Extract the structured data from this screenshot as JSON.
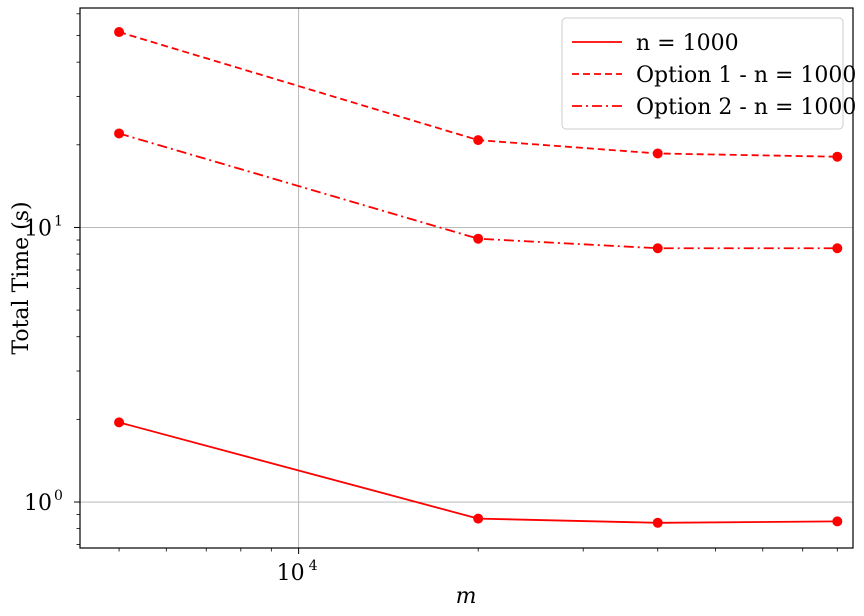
{
  "chart_data": {
    "type": "line",
    "xlabel": "m",
    "ylabel": "Total Time (s)",
    "xscale": "log",
    "yscale": "log",
    "xlim": [
      4300,
      85000
    ],
    "ylim": [
      0.68,
      63
    ],
    "grid": true,
    "legend_position": "top-right",
    "x": [
      5000,
      20000,
      40000,
      80000
    ],
    "x_ticks": [
      {
        "base": "10",
        "exp": "4",
        "value": 10000
      }
    ],
    "y_ticks": [
      {
        "base": "10",
        "exp": "0",
        "value": 1
      },
      {
        "base": "10",
        "exp": "1",
        "value": 10
      }
    ],
    "series": [
      {
        "name": "n = 1000",
        "linestyle": "solid",
        "color": "#ff0000",
        "values": [
          1.95,
          0.87,
          0.84,
          0.85
        ]
      },
      {
        "name": "Option 1 - n = 1000",
        "linestyle": "dashed",
        "color": "#ff0000",
        "values": [
          51.5,
          20.8,
          18.6,
          18.1
        ]
      },
      {
        "name": "Option 2 - n = 1000",
        "linestyle": "dashdot",
        "color": "#ff0000",
        "values": [
          22.0,
          9.1,
          8.4,
          8.4
        ]
      }
    ]
  }
}
